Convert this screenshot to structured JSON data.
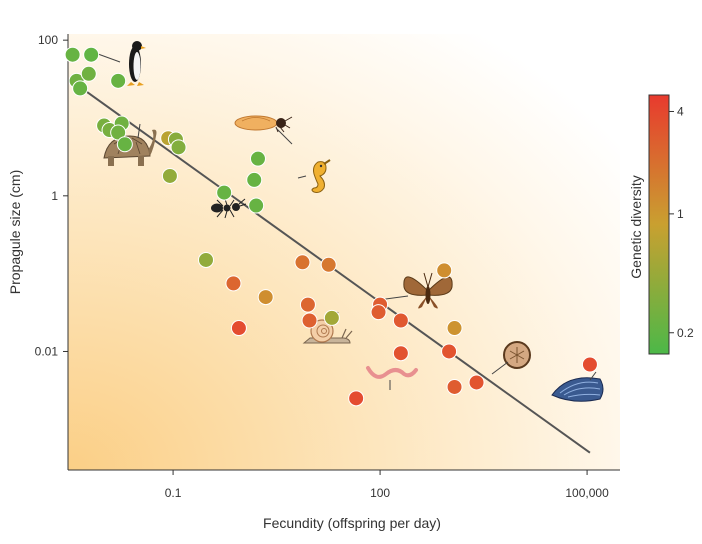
{
  "chart_data": {
    "type": "scatter",
    "title": "",
    "xlabel": "Fecundity (offspring per day)",
    "ylabel": "Propagule size (cm)",
    "x_scale": "log",
    "y_scale": "log",
    "xlim": [
      0.003,
      300000
    ],
    "ylim": [
      0.0003,
      120
    ],
    "x_ticks": [
      {
        "value": 0.1,
        "label": "0.1"
      },
      {
        "value": 100,
        "label": "100"
      },
      {
        "value": 100000,
        "label": "100,000"
      }
    ],
    "y_ticks": [
      {
        "value": 100,
        "label": "100"
      },
      {
        "value": 1,
        "label": "1"
      },
      {
        "value": 0.01,
        "label": "0.01"
      }
    ],
    "trend_line": {
      "x": [
        0.0045,
        110000
      ],
      "y": [
        25,
        0.0005
      ]
    },
    "colorbar": {
      "label": "Genetic diversity",
      "scale": "log",
      "range": [
        0.15,
        5
      ],
      "ticks": [
        {
          "value": 4,
          "label": "4"
        },
        {
          "value": 1,
          "label": "1"
        },
        {
          "value": 0.2,
          "label": "0.2"
        }
      ],
      "colors": [
        "#4cb848",
        "#c9a030",
        "#e84030"
      ]
    },
    "points": [
      {
        "x": 0.0035,
        "y": 65,
        "g": 0.22
      },
      {
        "x": 0.0065,
        "y": 65,
        "g": 0.2
      },
      {
        "x": 0.004,
        "y": 30,
        "g": 0.25
      },
      {
        "x": 0.0045,
        "y": 24,
        "g": 0.22
      },
      {
        "x": 0.006,
        "y": 37,
        "g": 0.25
      },
      {
        "x": 0.016,
        "y": 30,
        "g": 0.22
      },
      {
        "x": 0.01,
        "y": 8,
        "g": 0.28
      },
      {
        "x": 0.012,
        "y": 7,
        "g": 0.28
      },
      {
        "x": 0.018,
        "y": 8.5,
        "g": 0.25
      },
      {
        "x": 0.016,
        "y": 6.5,
        "g": 0.25
      },
      {
        "x": 0.02,
        "y": 4.6,
        "g": 0.22
      },
      {
        "x": 0.085,
        "y": 5.5,
        "g": 0.7
      },
      {
        "x": 0.11,
        "y": 5.3,
        "g": 0.35
      },
      {
        "x": 0.12,
        "y": 4.2,
        "g": 0.32
      },
      {
        "x": 0.09,
        "y": 1.8,
        "g": 0.4
      },
      {
        "x": 0.55,
        "y": 1.1,
        "g": 0.22
      },
      {
        "x": 1.7,
        "y": 3.0,
        "g": 0.22
      },
      {
        "x": 1.5,
        "y": 1.6,
        "g": 0.22
      },
      {
        "x": 1.6,
        "y": 0.75,
        "g": 0.22
      },
      {
        "x": 0.3,
        "y": 0.15,
        "g": 0.4
      },
      {
        "x": 0.75,
        "y": 0.075,
        "g": 2.5
      },
      {
        "x": 2.2,
        "y": 0.05,
        "g": 1.2
      },
      {
        "x": 0.9,
        "y": 0.02,
        "g": 4.0
      },
      {
        "x": 7.5,
        "y": 0.14,
        "g": 2.0
      },
      {
        "x": 18,
        "y": 0.13,
        "g": 1.8
      },
      {
        "x": 9,
        "y": 0.04,
        "g": 2.5
      },
      {
        "x": 9.5,
        "y": 0.025,
        "g": 2.8
      },
      {
        "x": 20,
        "y": 0.027,
        "g": 0.5
      },
      {
        "x": 100,
        "y": 0.04,
        "g": 3.0
      },
      {
        "x": 95,
        "y": 0.032,
        "g": 3.0
      },
      {
        "x": 200,
        "y": 0.025,
        "g": 3.2
      },
      {
        "x": 200,
        "y": 0.0095,
        "g": 3.6
      },
      {
        "x": 850,
        "y": 0.11,
        "g": 1.2
      },
      {
        "x": 1200,
        "y": 0.02,
        "g": 1.1
      },
      {
        "x": 1000,
        "y": 0.01,
        "g": 3.5
      },
      {
        "x": 1200,
        "y": 0.0035,
        "g": 3.0
      },
      {
        "x": 2500,
        "y": 0.004,
        "g": 3.5
      },
      {
        "x": 45,
        "y": 0.0025,
        "g": 4.0
      },
      {
        "x": 110000,
        "y": 0.0068,
        "g": 4.0
      }
    ]
  },
  "icons": [
    "penguin-icon",
    "tortoise-icon",
    "ant-icon",
    "termite-icon",
    "seahorse-icon",
    "snail-icon",
    "moth-icon",
    "worm-icon",
    "sand-dollar-icon",
    "mussel-icon"
  ]
}
